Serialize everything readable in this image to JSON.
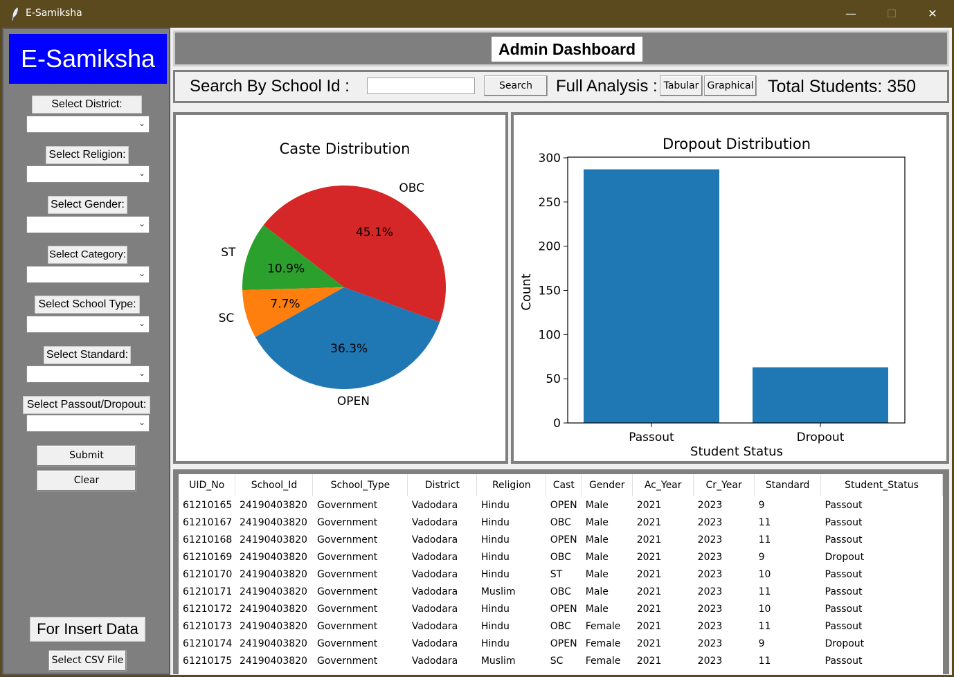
{
  "window": {
    "title": "E-Samiksha",
    "controls": [
      "—",
      "☐",
      "✕"
    ]
  },
  "sidebar": {
    "brand": "E-Samiksha",
    "filters": [
      {
        "label": "Select District:",
        "value": ""
      },
      {
        "label": "Select Religion:",
        "value": ""
      },
      {
        "label": "Select Gender:",
        "value": ""
      },
      {
        "label": "Select Category:",
        "value": ""
      },
      {
        "label": "Select School Type:",
        "value": ""
      },
      {
        "label": "Select Standard:",
        "value": ""
      },
      {
        "label": "Select Passout/Dropout:",
        "value": ""
      }
    ],
    "submit_label": "Submit",
    "clear_label": "Clear",
    "insert_label": "For Insert Data",
    "csv_label": "Select CSV File"
  },
  "header": {
    "title": "Admin Dashboard"
  },
  "search": {
    "label": "Search By School Id :",
    "value": "",
    "button": "Search",
    "analysis_label": "Full Analysis :",
    "tabular": "Tabular",
    "graphical": "Graphical",
    "total_students": "Total Students: 350"
  },
  "chart_data": [
    {
      "type": "pie",
      "title": "Caste Distribution",
      "labels": [
        "OBC",
        "ST",
        "SC",
        "OPEN"
      ],
      "values": [
        45.1,
        10.9,
        7.7,
        36.3
      ],
      "pct_labels": [
        "45.1%",
        "10.9%",
        "7.7%",
        "36.3%"
      ],
      "colors": [
        "#d62728",
        "#2ca02c",
        "#ff7f0e",
        "#1f77b4"
      ]
    },
    {
      "type": "bar",
      "title": "Dropout Distribution",
      "categories": [
        "Passout",
        "Dropout"
      ],
      "values": [
        287,
        63
      ],
      "xlabel": "Student Status",
      "ylabel": "Count",
      "ylim": [
        0,
        300
      ],
      "yticks": [
        "0",
        "50",
        "100",
        "150",
        "200",
        "250",
        "300"
      ],
      "color": "#1f77b4"
    }
  ],
  "table": {
    "columns": [
      "UID_No",
      "School_Id",
      "School_Type",
      "District",
      "Religion",
      "Cast",
      "Gender",
      "Ac_Year",
      "Cr_Year",
      "Standard",
      "Student_Status"
    ],
    "rows": [
      [
        "61210165",
        "24190403820",
        "Government",
        "Vadodara",
        "Hindu",
        "OPEN",
        "Male",
        "2021",
        "2023",
        "9",
        "Passout"
      ],
      [
        "61210167",
        "24190403820",
        "Government",
        "Vadodara",
        "Hindu",
        "OBC",
        "Male",
        "2021",
        "2023",
        "11",
        "Passout"
      ],
      [
        "61210168",
        "24190403820",
        "Government",
        "Vadodara",
        "Hindu",
        "OPEN",
        "Male",
        "2021",
        "2023",
        "11",
        "Passout"
      ],
      [
        "61210169",
        "24190403820",
        "Government",
        "Vadodara",
        "Hindu",
        "OBC",
        "Male",
        "2021",
        "2023",
        "9",
        "Dropout"
      ],
      [
        "61210170",
        "24190403820",
        "Government",
        "Vadodara",
        "Hindu",
        "ST",
        "Male",
        "2021",
        "2023",
        "10",
        "Passout"
      ],
      [
        "61210171",
        "24190403820",
        "Government",
        "Vadodara",
        "Muslim",
        "OBC",
        "Male",
        "2021",
        "2023",
        "11",
        "Passout"
      ],
      [
        "61210172",
        "24190403820",
        "Government",
        "Vadodara",
        "Hindu",
        "OPEN",
        "Male",
        "2021",
        "2023",
        "10",
        "Passout"
      ],
      [
        "61210173",
        "24190403820",
        "Government",
        "Vadodara",
        "Hindu",
        "OBC",
        "Female",
        "2021",
        "2023",
        "11",
        "Passout"
      ],
      [
        "61210174",
        "24190403820",
        "Government",
        "Vadodara",
        "Hindu",
        "OPEN",
        "Female",
        "2021",
        "2023",
        "9",
        "Dropout"
      ],
      [
        "61210175",
        "24190403820",
        "Government",
        "Vadodara",
        "Muslim",
        "SC",
        "Female",
        "2021",
        "2023",
        "11",
        "Passout"
      ]
    ]
  }
}
